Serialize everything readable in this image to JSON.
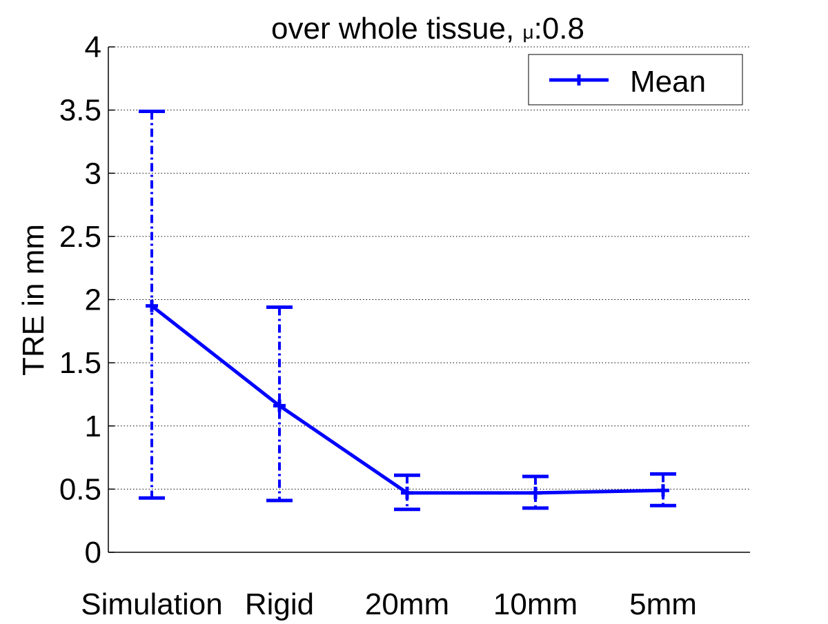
{
  "chart_data": {
    "type": "line",
    "title": "over whole tissue, μ:0.8",
    "title_parts": {
      "prefix": "over whole tissue, ",
      "symbol": "μ",
      "suffix": ":0.8"
    },
    "xlabel": "",
    "ylabel": "TRE in mm",
    "categories": [
      "Simulation",
      "Rigid",
      "20mm",
      "10mm",
      "5mm"
    ],
    "ylim": [
      0,
      4
    ],
    "yticks": [
      "0",
      "0.5",
      "1",
      "1.5",
      "2",
      "2.5",
      "3",
      "3.5",
      "4"
    ],
    "ytick_values": [
      0,
      0.5,
      1,
      1.5,
      2,
      2.5,
      3,
      3.5,
      4
    ],
    "grid": "horizontal-dotted",
    "legend_position": "top-right",
    "series": [
      {
        "name": "Mean",
        "color": "#0000ff",
        "values": [
          1.95,
          1.16,
          0.47,
          0.47,
          0.49
        ],
        "error_lower": [
          0.43,
          0.41,
          0.34,
          0.35,
          0.37
        ],
        "error_upper": [
          3.49,
          1.94,
          0.61,
          0.6,
          0.62
        ]
      }
    ]
  }
}
